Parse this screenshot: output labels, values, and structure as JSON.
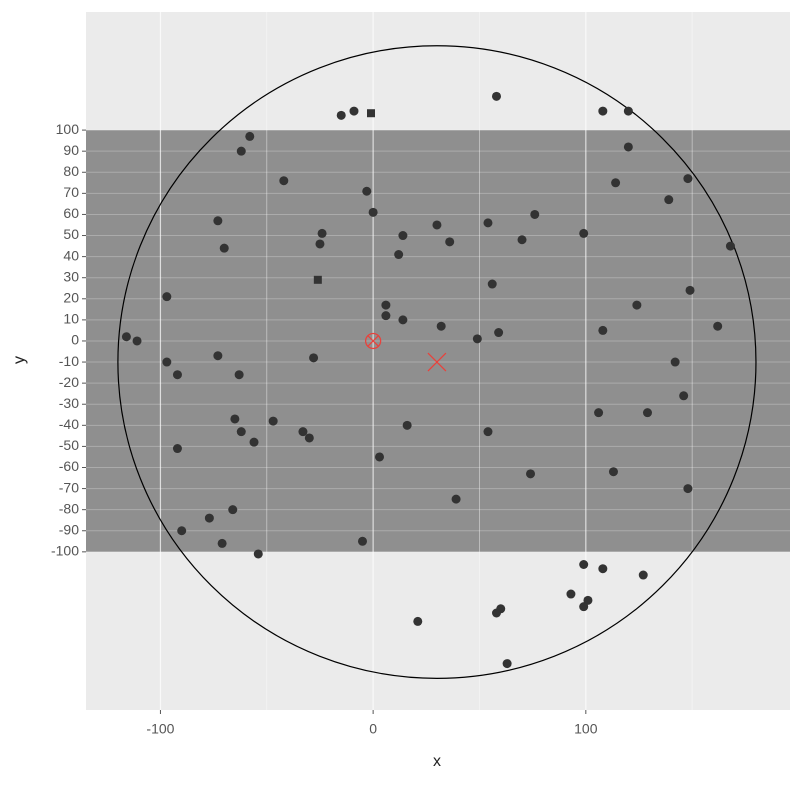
{
  "chart_data": {
    "type": "scatter",
    "x_label": "x",
    "y_label": "y",
    "xlim": [
      -135,
      196
    ],
    "ylim": [
      -175,
      156
    ],
    "xticks": [
      -100,
      0,
      100
    ],
    "x_minor_grid": [
      -50,
      50,
      150
    ],
    "yticks": [
      -100,
      -90,
      -80,
      -70,
      -60,
      -50,
      -40,
      -30,
      -20,
      -10,
      0,
      10,
      20,
      30,
      40,
      50,
      60,
      70,
      80,
      90,
      100
    ],
    "grid": true,
    "band": {
      "ymin": -100,
      "ymax": 100,
      "color": "#8f8f8f"
    },
    "circle": {
      "x": 30,
      "y": -10,
      "r": 150,
      "color": "#000000"
    },
    "cross_marker": {
      "x": 30,
      "y": -10,
      "color": "#e8423c"
    },
    "circle_cross_marker": {
      "x": 0,
      "y": 0,
      "color": "#e8423c"
    },
    "series": [
      {
        "marker": "circle",
        "color": "#333333",
        "x": [
          -15,
          -9,
          58,
          108,
          120,
          -58,
          -62,
          120,
          -42,
          114,
          148,
          -3,
          139,
          0,
          76,
          -73,
          30,
          54,
          14,
          -24,
          99,
          36,
          70,
          -70,
          -25,
          168,
          12,
          56,
          149,
          -97,
          124,
          6,
          6,
          14,
          32,
          162,
          108,
          59,
          -116,
          -111,
          49,
          -97,
          -92,
          -73,
          -28,
          142,
          -63,
          146,
          106,
          129,
          -65,
          -47,
          16,
          -62,
          -33,
          -30,
          54,
          -56,
          -92,
          3,
          74,
          113,
          148,
          39,
          -66,
          -77,
          -90,
          -71,
          -5,
          -54,
          99,
          108,
          127,
          93,
          101,
          99,
          60,
          58,
          21,
          63
        ],
        "values": [
          107,
          109,
          116,
          109,
          109,
          97,
          90,
          92,
          76,
          75,
          77,
          71,
          67,
          61,
          60,
          57,
          55,
          56,
          50,
          51,
          51,
          47,
          48,
          44,
          46,
          45,
          41,
          27,
          24,
          21,
          17,
          17,
          12,
          10,
          7,
          7,
          5,
          4,
          2,
          0,
          1,
          -10,
          -16,
          -7,
          -8,
          -10,
          -16,
          -26,
          -34,
          -34,
          -37,
          -38,
          -40,
          -43,
          -43,
          -46,
          -43,
          -48,
          -51,
          -55,
          -63,
          -62,
          -70,
          -75,
          -80,
          -84,
          -90,
          -96,
          -95,
          -101,
          -106,
          -108,
          -111,
          -120,
          -123,
          -126,
          -127,
          -129,
          -133,
          -153
        ]
      },
      {
        "marker": "square",
        "color": "#333333",
        "x": [
          -1,
          -26
        ],
        "values": [
          108,
          29
        ]
      }
    ]
  }
}
